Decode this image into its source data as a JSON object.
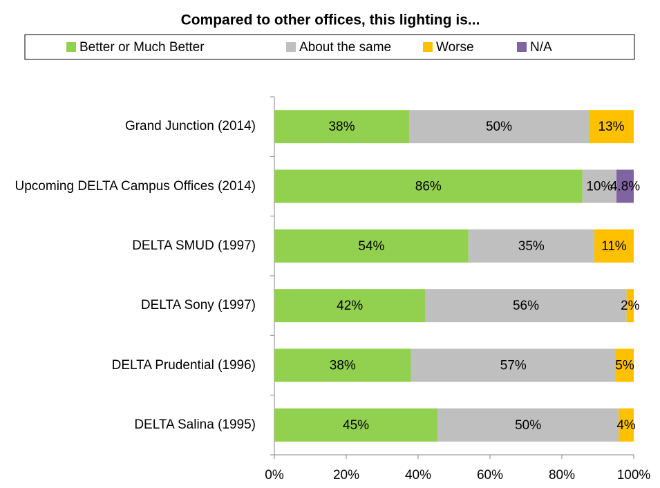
{
  "chart_data": {
    "type": "stacked_barh",
    "title": "Compared to other offices, this lighting is...",
    "categories": [
      "Grand Junction (2014)",
      "Upcoming DELTA Campus Offices (2014)",
      "DELTA SMUD (1997)",
      "DELTA Sony (1997)",
      "DELTA Prudential (1996)",
      "DELTA Salina (1995)"
    ],
    "series": [
      {
        "name": "Better or Much Better",
        "color": "#92d050",
        "values": [
          37.5,
          85.7,
          54,
          42,
          38,
          45.4
        ],
        "value_labels": [
          "38%",
          "86%",
          "54%",
          "42%",
          "38%",
          "45%"
        ]
      },
      {
        "name": "About the same",
        "color": "#bfbfbf",
        "values": [
          50,
          9.5,
          35,
          56,
          57,
          50.4
        ],
        "value_labels": [
          "50%",
          "10%",
          "35%",
          "56%",
          "57%",
          "50%"
        ]
      },
      {
        "name": "Worse",
        "color": "#ffc000",
        "values": [
          12.5,
          null,
          11,
          2,
          5,
          4.2
        ],
        "value_labels": [
          "13%",
          null,
          "11%",
          "2%",
          "5%",
          "4%"
        ]
      },
      {
        "name": "N/A",
        "color": "#8064a2",
        "values": [
          null,
          4.8,
          null,
          null,
          null,
          null
        ],
        "value_labels": [
          null,
          "4.8%",
          null,
          null,
          null,
          null
        ]
      }
    ],
    "xlim": [
      0,
      100
    ],
    "xticks": [
      {
        "value": 0,
        "label": "0%"
      },
      {
        "value": 20,
        "label": "20%"
      },
      {
        "value": 40,
        "label": "40%"
      },
      {
        "value": 60,
        "label": "60%"
      },
      {
        "value": 80,
        "label": "80%"
      },
      {
        "value": 100,
        "label": "100%"
      }
    ],
    "legend": "top",
    "grid": false
  }
}
